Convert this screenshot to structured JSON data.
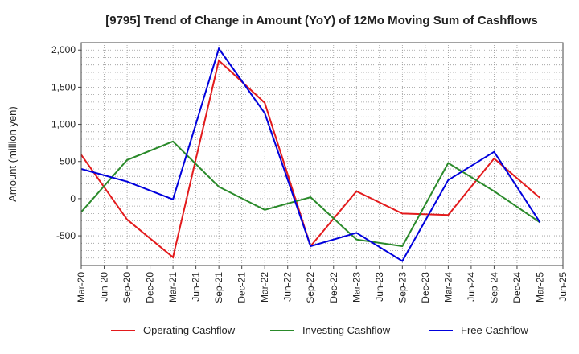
{
  "chart_data": {
    "type": "line",
    "title": "[9795]  Trend of Change in Amount (YoY) of 12Mo Moving Sum of Cashflows",
    "xlabel": "",
    "ylabel": "Amount (million yen)",
    "ylim": [
      -900,
      2100
    ],
    "yticks": [
      2000,
      1500,
      1000,
      500,
      0,
      -500
    ],
    "ytick_labels": [
      "2,000",
      "1,500",
      "1,000",
      "500",
      "0",
      "-500"
    ],
    "categories": [
      "Mar-20",
      "Jun-20",
      "Sep-20",
      "Dec-20",
      "Mar-21",
      "Jun-21",
      "Sep-21",
      "Dec-21",
      "Mar-22",
      "Jun-22",
      "Sep-22",
      "Dec-22",
      "Mar-23",
      "Jun-23",
      "Sep-23",
      "Dec-23",
      "Mar-24",
      "Jun-24",
      "Sep-24",
      "Dec-24",
      "Mar-25",
      "Jun-25"
    ],
    "grid": true,
    "legend_position": "bottom",
    "series": [
      {
        "name": "Operating Cashflow",
        "color": "#e31a1c",
        "x": [
          "Mar-20",
          "Sep-20",
          "Mar-21",
          "Sep-21",
          "Mar-22",
          "Sep-22",
          "Mar-23",
          "Sep-23",
          "Mar-24",
          "Sep-24",
          "Mar-25"
        ],
        "values": [
          590,
          -280,
          -790,
          1860,
          1290,
          -640,
          100,
          -200,
          -220,
          540,
          10
        ]
      },
      {
        "name": "Investing Cashflow",
        "color": "#2a8a2a",
        "x": [
          "Mar-20",
          "Sep-20",
          "Mar-21",
          "Sep-21",
          "Mar-22",
          "Sep-22",
          "Mar-23",
          "Sep-23",
          "Mar-24",
          "Sep-24",
          "Mar-25"
        ],
        "values": [
          -180,
          520,
          770,
          160,
          -150,
          20,
          -550,
          -640,
          480,
          100,
          -320
        ]
      },
      {
        "name": "Free Cashflow",
        "color": "#0000dd",
        "x": [
          "Mar-20",
          "Sep-20",
          "Mar-21",
          "Sep-21",
          "Mar-22",
          "Sep-22",
          "Mar-23",
          "Sep-23",
          "Mar-24",
          "Sep-24",
          "Mar-25"
        ],
        "values": [
          400,
          230,
          -10,
          2020,
          1150,
          -640,
          -460,
          -840,
          250,
          630,
          -320
        ]
      }
    ]
  }
}
